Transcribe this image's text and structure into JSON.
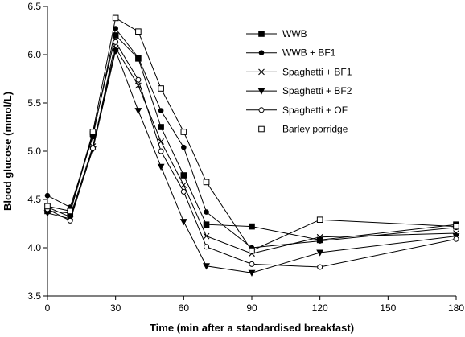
{
  "chart_data": {
    "type": "line",
    "title": "",
    "xlabel": "Time (min after a standardised  breakfast)",
    "ylabel": "Blood glucose (mmol/L)",
    "xlim": [
      0,
      180
    ],
    "ylim": [
      3.5,
      6.5
    ],
    "xticks": [
      0,
      30,
      60,
      90,
      120,
      150,
      180
    ],
    "yticks": [
      3.5,
      4.0,
      4.5,
      5.0,
      5.5,
      6.0,
      6.5
    ],
    "xtick_labels": [
      "0",
      "30",
      "60",
      "90",
      "120",
      "150",
      "180"
    ],
    "ytick_labels": [
      "3.5",
      "4.0",
      "4.5",
      "5.0",
      "5.5",
      "6.0",
      "6.5"
    ],
    "grid": false,
    "legend_position": "top-right",
    "series": [
      {
        "name": "WWB",
        "marker": "square-filled",
        "points": [
          [
            0,
            4.38
          ],
          [
            10,
            4.36
          ],
          [
            20,
            5.18
          ],
          [
            30,
            6.2
          ],
          [
            40,
            5.96
          ],
          [
            50,
            5.25
          ],
          [
            60,
            4.75
          ],
          [
            70,
            4.24
          ],
          [
            90,
            4.22
          ],
          [
            120,
            4.08
          ],
          [
            180,
            4.24
          ]
        ]
      },
      {
        "name": "WWB + BF1",
        "marker": "circle-filled",
        "points": [
          [
            0,
            4.54
          ],
          [
            10,
            4.42
          ],
          [
            20,
            5.15
          ],
          [
            30,
            6.27
          ],
          [
            40,
            5.97
          ],
          [
            50,
            5.42
          ],
          [
            60,
            5.04
          ],
          [
            70,
            4.37
          ],
          [
            90,
            4.0
          ],
          [
            120,
            4.07
          ],
          [
            180,
            4.21
          ]
        ]
      },
      {
        "name": "Spaghetti + BF1",
        "marker": "x",
        "points": [
          [
            0,
            4.42
          ],
          [
            10,
            4.32
          ],
          [
            20,
            5.05
          ],
          [
            30,
            6.07
          ],
          [
            40,
            5.68
          ],
          [
            50,
            5.1
          ],
          [
            60,
            4.65
          ],
          [
            70,
            4.12
          ],
          [
            90,
            3.94
          ],
          [
            120,
            4.11
          ],
          [
            180,
            4.15
          ]
        ]
      },
      {
        "name": "Spaghetti + BF2",
        "marker": "triangle-down-filled",
        "points": [
          [
            0,
            4.36
          ],
          [
            10,
            4.3
          ],
          [
            20,
            5.02
          ],
          [
            30,
            6.04
          ],
          [
            40,
            5.42
          ],
          [
            50,
            4.84
          ],
          [
            60,
            4.27
          ],
          [
            70,
            3.81
          ],
          [
            90,
            3.74
          ],
          [
            120,
            3.95
          ],
          [
            180,
            4.12
          ]
        ]
      },
      {
        "name": "Spaghetti + OF",
        "marker": "circle-open",
        "points": [
          [
            0,
            4.4
          ],
          [
            10,
            4.28
          ],
          [
            20,
            5.03
          ],
          [
            30,
            6.13
          ],
          [
            40,
            5.74
          ],
          [
            50,
            5.0
          ],
          [
            60,
            4.58
          ],
          [
            70,
            4.01
          ],
          [
            90,
            3.83
          ],
          [
            120,
            3.8
          ],
          [
            180,
            4.09
          ]
        ]
      },
      {
        "name": "Barley porridge",
        "marker": "square-open",
        "points": [
          [
            0,
            4.43
          ],
          [
            10,
            4.38
          ],
          [
            20,
            5.2
          ],
          [
            30,
            6.38
          ],
          [
            40,
            6.24
          ],
          [
            50,
            5.65
          ],
          [
            60,
            5.2
          ],
          [
            70,
            4.68
          ],
          [
            90,
            3.97
          ],
          [
            120,
            4.29
          ],
          [
            180,
            4.22
          ]
        ]
      }
    ]
  }
}
